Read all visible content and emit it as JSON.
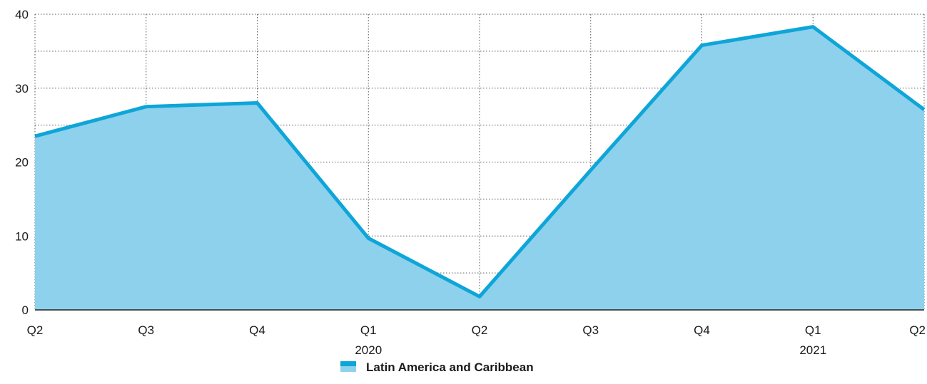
{
  "chart_data": {
    "type": "area",
    "categories": [
      "Q2",
      "Q3",
      "Q4",
      "Q1",
      "Q2",
      "Q3",
      "Q4",
      "Q1",
      "Q2"
    ],
    "year_labels": [
      "",
      "",
      "",
      "2020",
      "",
      "",
      "",
      "2021",
      ""
    ],
    "series": [
      {
        "name": "Latin America and Caribbean",
        "values": [
          23.5,
          27.5,
          28.0,
          9.7,
          1.8,
          18.9,
          35.8,
          38.3,
          27.1
        ]
      }
    ],
    "ylim": [
      0,
      40
    ],
    "yticks": [
      0,
      10,
      20,
      30,
      40
    ],
    "grid": true,
    "legend_position": "bottom-center",
    "colors": {
      "line": "#0ea5d8",
      "fill": "#8dd1ec",
      "grid": "#555555",
      "axis": "#222222"
    }
  }
}
